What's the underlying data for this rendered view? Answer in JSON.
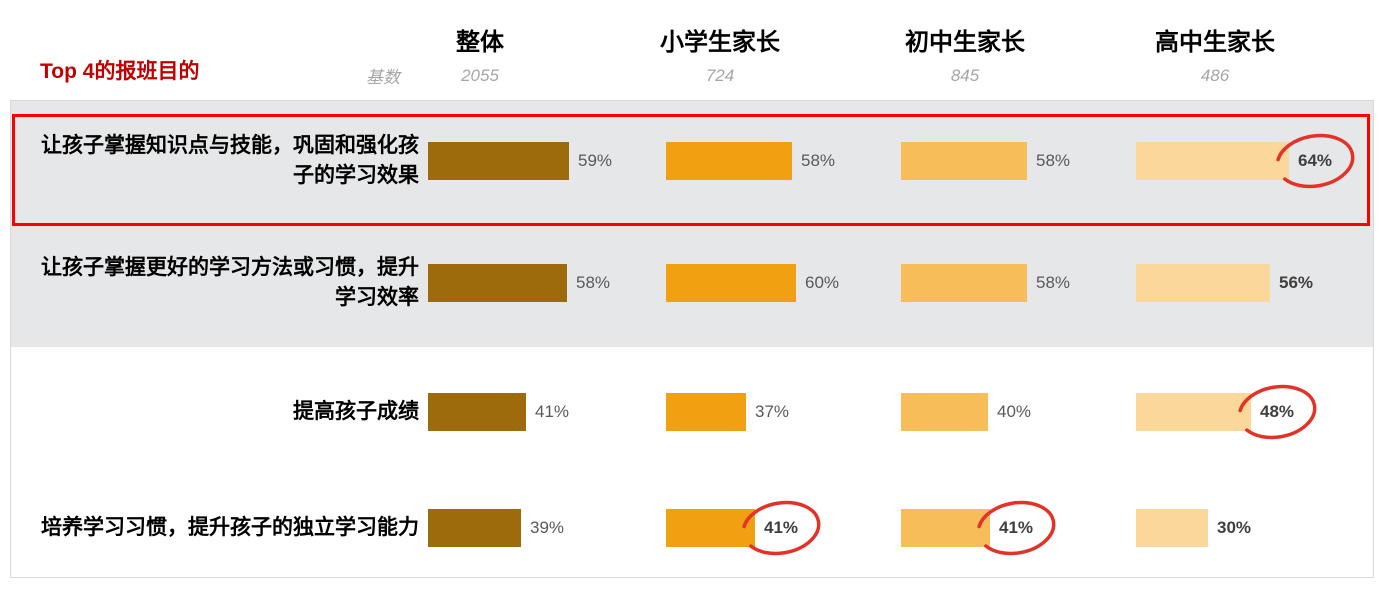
{
  "title": "Top 4的报班目的",
  "base_row_label": "基数",
  "columns": [
    {
      "label": "整体",
      "base": "2055",
      "color": "#9D6A0C"
    },
    {
      "label": "小学生家长",
      "base": "724",
      "color": "#F0A011"
    },
    {
      "label": "初中生家长",
      "base": "845",
      "color": "#F7BD59"
    },
    {
      "label": "高中生家长",
      "base": "486",
      "color": "#FAD79B"
    }
  ],
  "rows": [
    {
      "label": "让孩子掌握知识点与技能，巩固和强化孩子的学习效果",
      "highlighted": true,
      "cells": [
        {
          "value": 59
        },
        {
          "value": 58
        },
        {
          "value": 58
        },
        {
          "value": 64,
          "circled": true,
          "emph": true
        }
      ]
    },
    {
      "label": "让孩子掌握更好的学习方法或习惯，提升学习效率",
      "highlighted": false,
      "cells": [
        {
          "value": 58
        },
        {
          "value": 60
        },
        {
          "value": 58
        },
        {
          "value": 56,
          "emph": true
        }
      ]
    },
    {
      "label": "提高孩子成绩",
      "highlighted": false,
      "cells": [
        {
          "value": 41
        },
        {
          "value": 37
        },
        {
          "value": 40
        },
        {
          "value": 48,
          "circled": true,
          "emph": true
        }
      ]
    },
    {
      "label": "培养学习习惯，提升孩子的独立学习能力",
      "highlighted": false,
      "cells": [
        {
          "value": 39
        },
        {
          "value": 41,
          "circled": true,
          "emph": true
        },
        {
          "value": 41,
          "circled": true,
          "emph": true
        },
        {
          "value": 30,
          "emph": true
        }
      ]
    }
  ],
  "colors": {
    "bar_overall": "#9D6A0C",
    "bar_primary": "#F0A011",
    "bar_middle": "#F7BD59",
    "bar_high": "#FAD79B",
    "highlight_border": "#FE0000",
    "circle_annotation": "#E33227",
    "band_background": "#E6E7E9",
    "title_text": "#C00000",
    "base_text": "#A6A6A6",
    "value_text": "#595959"
  },
  "chart_data": {
    "type": "bar",
    "title": "Top 4的报班目的",
    "unit": "%",
    "orientation": "horizontal",
    "categories": [
      "让孩子掌握知识点与技能，巩固和强化孩子的学习效果",
      "让孩子掌握更好的学习方法或习惯，提升学习效率",
      "提高孩子成绩",
      "培养学习习惯，提升孩子的独立学习能力"
    ],
    "series": [
      {
        "name": "整体",
        "base": 2055,
        "values": [
          59,
          58,
          41,
          39
        ]
      },
      {
        "name": "小学生家长",
        "base": 724,
        "values": [
          58,
          60,
          37,
          41
        ]
      },
      {
        "name": "初中生家长",
        "base": 845,
        "values": [
          58,
          58,
          40,
          41
        ]
      },
      {
        "name": "高中生家长",
        "base": 486,
        "values": [
          64,
          56,
          48,
          30
        ]
      }
    ],
    "annotations": {
      "highlighted_row": "让孩子掌握知识点与技能，巩固和强化孩子的学习效果",
      "circled_values": [
        {
          "series": "高中生家长",
          "category": "让孩子掌握知识点与技能，巩固和强化孩子的学习效果",
          "value": 64
        },
        {
          "series": "高中生家长",
          "category": "提高孩子成绩",
          "value": 48
        },
        {
          "series": "小学生家长",
          "category": "培养学习习惯，提升孩子的独立学习能力",
          "value": 41
        },
        {
          "series": "初中生家长",
          "category": "培养学习习惯，提升孩子的独立学习能力",
          "value": 41
        }
      ]
    },
    "xlim": [
      0,
      100
    ],
    "grid": false,
    "legend_position": "column-headers"
  }
}
